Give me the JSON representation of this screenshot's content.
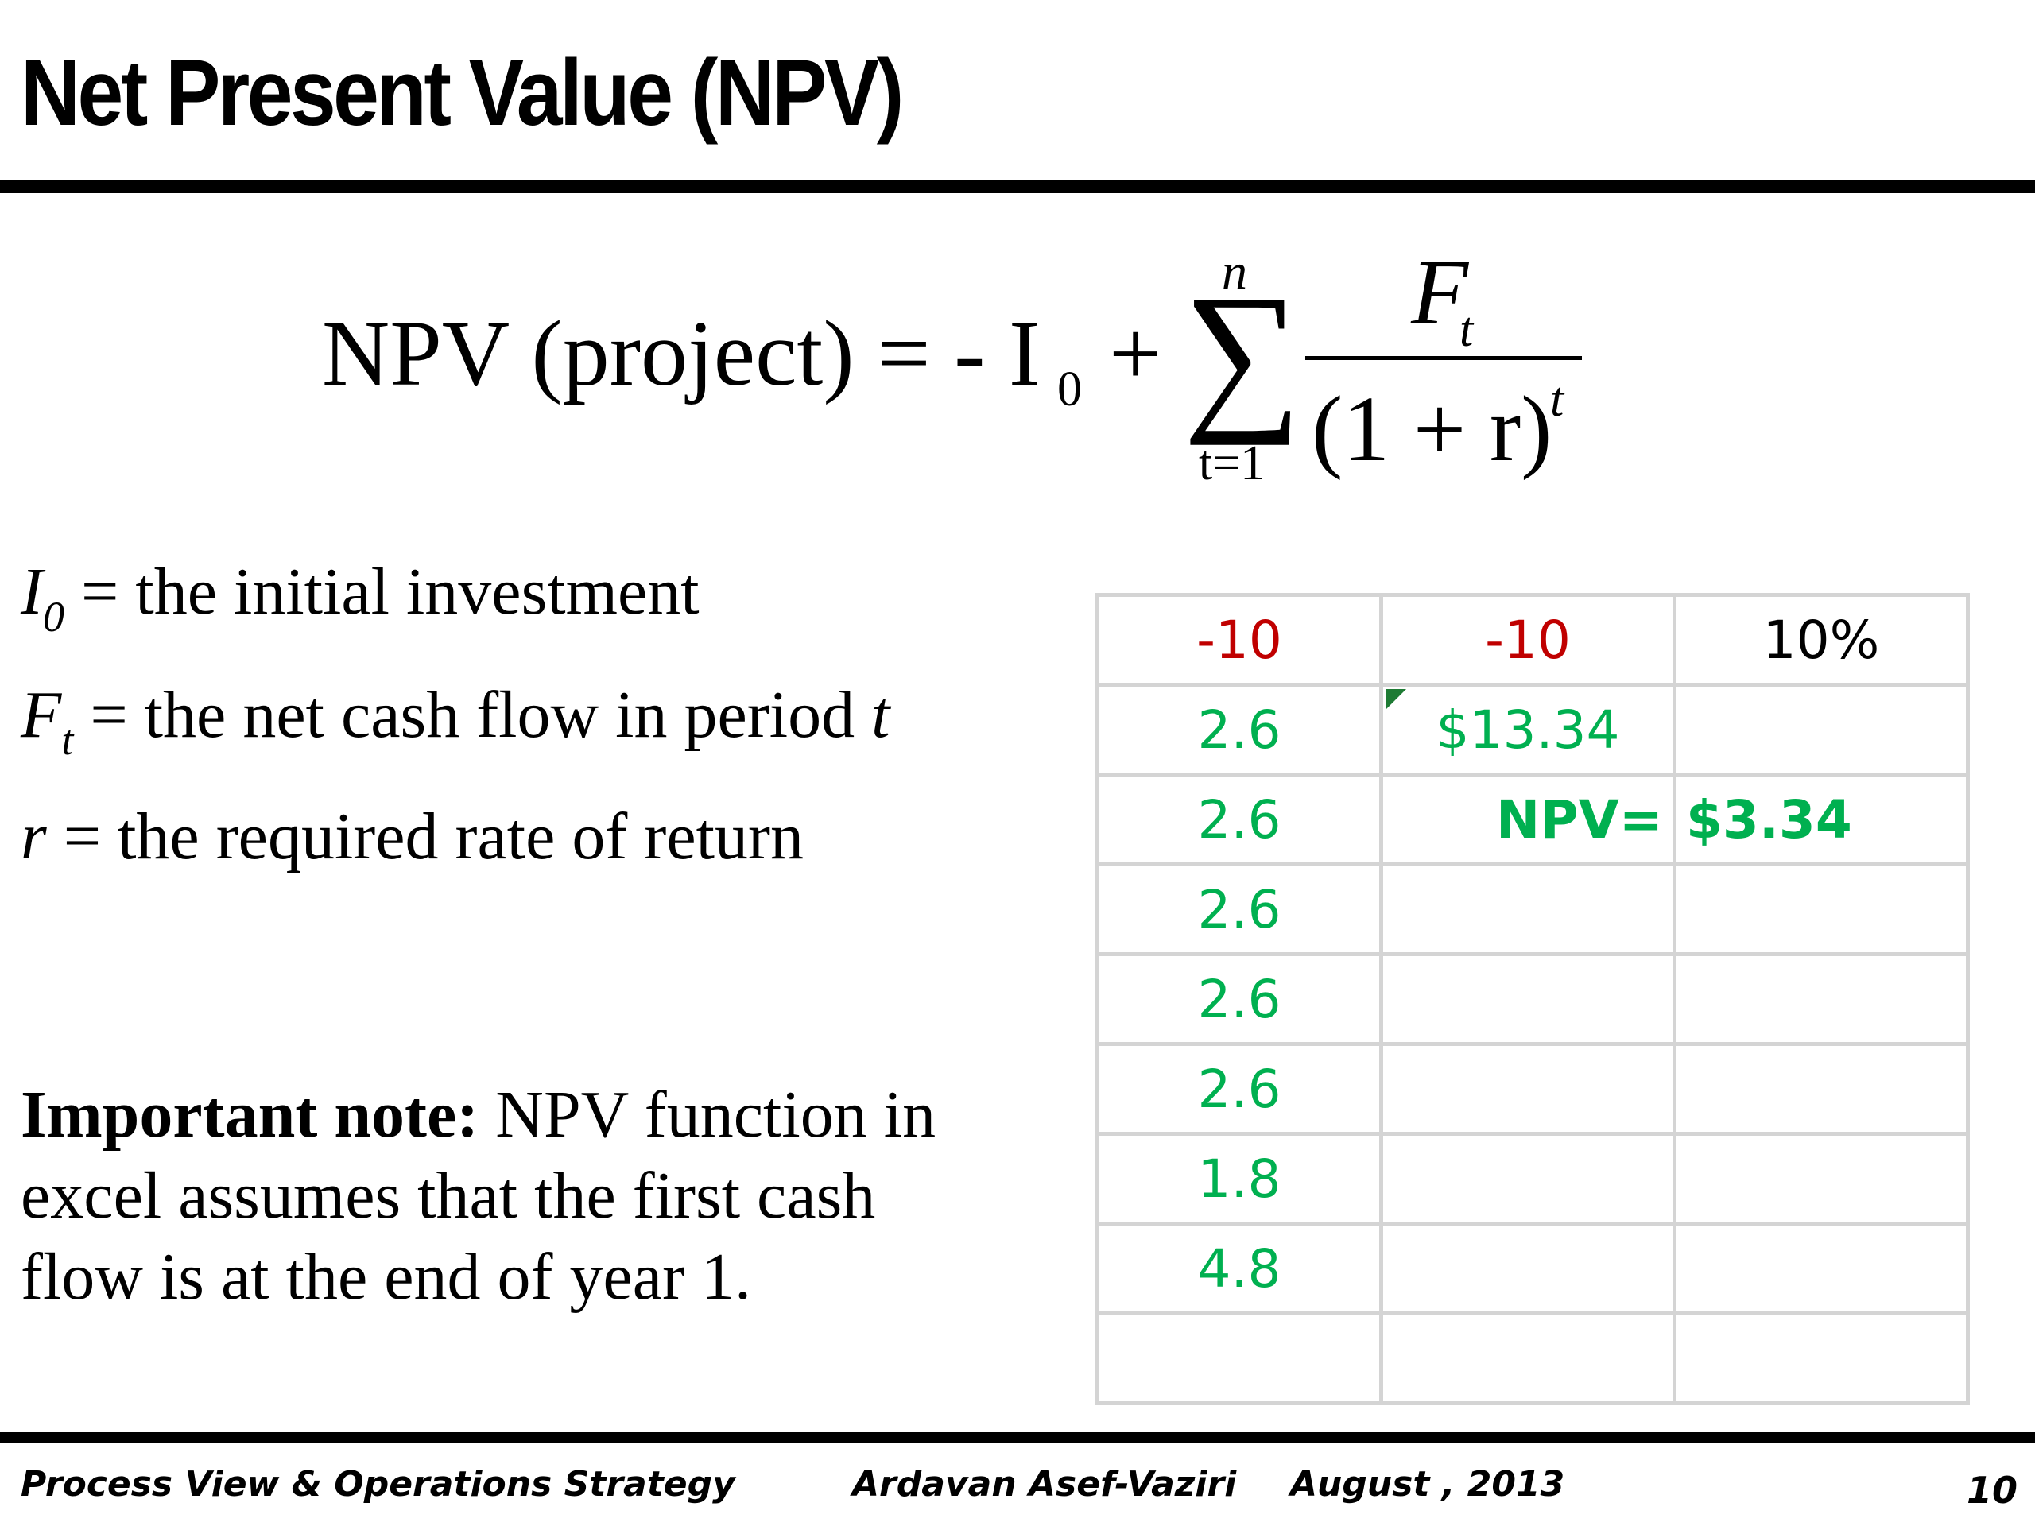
{
  "title": "Net Present Value (NPV)",
  "formula": {
    "lhs": "NPV (project) = - I",
    "sub0": "0",
    "plus": "+",
    "sigma": "∑",
    "upper": "n",
    "lower": "t=1",
    "numerator": "F",
    "numerator_sub": "t",
    "denominator": "(1 + r)",
    "denominator_sup": "t"
  },
  "definitions": [
    {
      "symbol": "I",
      "sub": "0",
      "text": " = the initial investment"
    },
    {
      "symbol": "F",
      "sub": "t",
      "text": " = the net cash flow in period ",
      "tail": "t"
    },
    {
      "symbol": "r",
      "sub": "",
      "text": " = the required rate of return"
    }
  ],
  "note": {
    "bold": "Important note:",
    "text": " NPV function in excel assumes that the first cash flow is at the end of year 1."
  },
  "grid": {
    "row1": [
      "-10",
      "-10",
      "10%"
    ],
    "col1": [
      "2.6",
      "2.6",
      "2.6",
      "2.6",
      "2.6",
      "1.8",
      "4.8"
    ],
    "pv_value": "$13.34",
    "npv_label": "NPV=",
    "npv_value": "$3.34"
  },
  "colors": {
    "negative": "#c00000",
    "positive": "#00b050",
    "gridline": "#d4d4d4"
  },
  "footer": {
    "course": "Process View & Operations Strategy",
    "author": "Ardavan Asef-Vaziri",
    "date": "August , 2013",
    "page": "10"
  }
}
